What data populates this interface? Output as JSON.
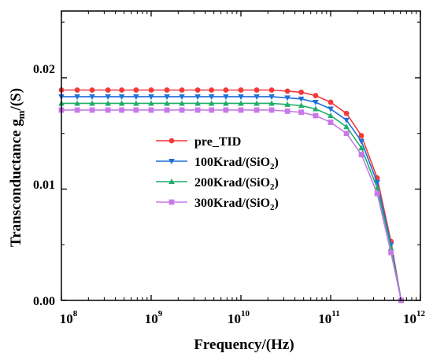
{
  "chart_data": {
    "type": "line",
    "xlabel": "Frequency/(Hz)",
    "ylabel_main": "Transconductance g",
    "ylabel_sub": "m",
    "ylabel_tail": "/(S)",
    "x_scale": "log",
    "xlim": [
      100000000,
      1000000000000
    ],
    "ylim": [
      0,
      0.026
    ],
    "x_ticks": [
      {
        "base": "10",
        "exp": "8",
        "value": 100000000
      },
      {
        "base": "10",
        "exp": "9",
        "value": 1000000000
      },
      {
        "base": "10",
        "exp": "10",
        "value": 10000000000
      },
      {
        "base": "10",
        "exp": "11",
        "value": 100000000000
      },
      {
        "base": "10",
        "exp": "12",
        "value": 1000000000000
      }
    ],
    "y_ticks": [
      {
        "label": "0.00",
        "value": 0
      },
      {
        "label": "0.01",
        "value": 0.01
      },
      {
        "label": "0.02",
        "value": 0.02
      }
    ],
    "grid": false,
    "legend_position": "center-left",
    "x": [
      100000000,
      150000000,
      220000000,
      330000000,
      470000000,
      680000000,
      1000000000,
      1500000000,
      2200000000,
      3300000000,
      4700000000,
      6800000000,
      10000000000,
      15000000000,
      22000000000,
      33000000000,
      47000000000,
      68000000000,
      100000000000,
      150000000000,
      220000000000,
      330000000000,
      470000000000,
      610000000000
    ],
    "series": [
      {
        "name": "pre_TID",
        "legend_main": "pre_TID",
        "legend_sub": "",
        "legend_tail": "",
        "color": "#f23a3a",
        "marker": "circle",
        "values": [
          0.0189,
          0.0189,
          0.0189,
          0.0189,
          0.0189,
          0.0189,
          0.0189,
          0.0189,
          0.0189,
          0.0189,
          0.0189,
          0.0189,
          0.0189,
          0.0189,
          0.0189,
          0.0188,
          0.0187,
          0.0184,
          0.0178,
          0.0168,
          0.0148,
          0.011,
          0.0053,
          0.0
        ]
      },
      {
        "name": "100Krad/(SiO2)",
        "legend_main": "100Krad/(SiO",
        "legend_sub": "2",
        "legend_tail": ")",
        "color": "#1f6fd9",
        "marker": "triangle-down",
        "values": [
          0.0183,
          0.0183,
          0.0183,
          0.0183,
          0.0183,
          0.0183,
          0.0183,
          0.0183,
          0.0183,
          0.0183,
          0.0183,
          0.0183,
          0.0183,
          0.0183,
          0.0183,
          0.0182,
          0.0181,
          0.0178,
          0.0172,
          0.0162,
          0.0143,
          0.0106,
          0.005,
          0.0
        ]
      },
      {
        "name": "200Krad/(SiO2)",
        "legend_main": "200Krad/(SiO",
        "legend_sub": "2",
        "legend_tail": ")",
        "color": "#1fae6a",
        "marker": "triangle-up",
        "values": [
          0.0177,
          0.0177,
          0.0177,
          0.0177,
          0.0177,
          0.0177,
          0.0177,
          0.0177,
          0.0177,
          0.0177,
          0.0177,
          0.0177,
          0.0177,
          0.0177,
          0.0177,
          0.0176,
          0.0175,
          0.0172,
          0.0166,
          0.0156,
          0.0137,
          0.0101,
          0.0047,
          0.0
        ]
      },
      {
        "name": "300Krad/(SiO2)",
        "legend_main": "300Krad/(SiO",
        "legend_sub": "2",
        "legend_tail": ")",
        "color": "#c879e8",
        "marker": "square",
        "values": [
          0.0171,
          0.0171,
          0.0171,
          0.0171,
          0.0171,
          0.0171,
          0.0171,
          0.0171,
          0.0171,
          0.0171,
          0.0171,
          0.0171,
          0.0171,
          0.0171,
          0.0171,
          0.017,
          0.0169,
          0.0166,
          0.016,
          0.015,
          0.0131,
          0.0096,
          0.0043,
          0.0
        ]
      }
    ]
  }
}
